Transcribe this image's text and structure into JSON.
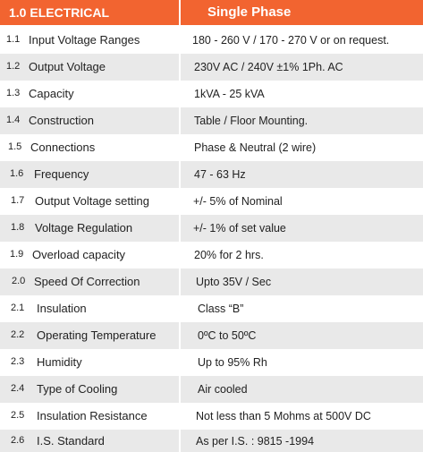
{
  "header": {
    "section": "1.0 ELECTRICAL",
    "phase": "Single  Phase"
  },
  "colors": {
    "header_bg": "#f26430",
    "alt_row_bg": "#e9e9e9",
    "text": "#222222"
  },
  "rows": [
    {
      "num": "1.1",
      "param": "Input Voltage Ranges",
      "value": "180 - 260 V / 170 - 270 V or on request."
    },
    {
      "num": "1.2",
      "param": "Output Voltage",
      "value": "230V AC / 240V  ±1% 1Ph. AC"
    },
    {
      "num": "1.3",
      "param": "Capacity",
      "value": "1kVA - 25 kVA"
    },
    {
      "num": "1.4",
      "param": "Construction",
      "value": "Table / Floor Mounting."
    },
    {
      "num": "1.5",
      "param": "Connections",
      "value": "Phase & Neutral (2 wire)"
    },
    {
      "num": "1.6",
      "param": "Frequency",
      "value": "47 - 63 Hz"
    },
    {
      "num": "1.7",
      "param": "Output Voltage setting",
      "value": "+/- 5% of Nominal"
    },
    {
      "num": "1.8",
      "param": "Voltage Regulation",
      "value": "+/- 1% of set value"
    },
    {
      "num": "1.9",
      "param": "Overload capacity",
      "value": "20% for 2 hrs."
    },
    {
      "num": "2.0",
      "param": "Speed Of Correction",
      "value": "Upto 35V / Sec"
    },
    {
      "num": "2.1",
      "param": "Insulation",
      "value": "Class “B”"
    },
    {
      "num": "2.2",
      "param": "Operating Temperature",
      "value": "0ºC to 50ºC"
    },
    {
      "num": "2.3",
      "param": "Humidity",
      "value": "Up to 95% Rh"
    },
    {
      "num": "2.4",
      "param": "Type of Cooling",
      "value": "Air cooled"
    },
    {
      "num": "2.5",
      "param": "Insulation Resistance",
      "value": "Not less than 5 Mohms at 500V DC"
    },
    {
      "num": "2.6",
      "param": "I.S. Standard",
      "value": "As per I.S. : 9815 -1994"
    }
  ]
}
